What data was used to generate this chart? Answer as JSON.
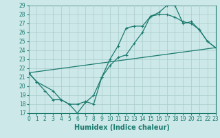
{
  "title": "",
  "xlabel": "Humidex (Indice chaleur)",
  "bg_color": "#cce8e8",
  "grid_color": "#aacccc",
  "line_color": "#1a7a6e",
  "xlim": [
    0,
    23
  ],
  "ylim": [
    17,
    29
  ],
  "xticks": [
    0,
    1,
    2,
    3,
    4,
    5,
    6,
    7,
    8,
    9,
    10,
    11,
    12,
    13,
    14,
    15,
    16,
    17,
    18,
    19,
    20,
    21,
    22,
    23
  ],
  "yticks": [
    17,
    18,
    19,
    20,
    21,
    22,
    23,
    24,
    25,
    26,
    27,
    28,
    29
  ],
  "line1_x": [
    0,
    1,
    2,
    3,
    4,
    5,
    6,
    7,
    8,
    9,
    10,
    11,
    12,
    13,
    14,
    15,
    16,
    17,
    18,
    19,
    20,
    21,
    22,
    23
  ],
  "line1_y": [
    21.5,
    20.5,
    19.5,
    18.5,
    18.5,
    18.0,
    17.0,
    18.2,
    19.0,
    21.0,
    23.0,
    24.5,
    26.5,
    26.7,
    26.7,
    27.8,
    28.2,
    29.0,
    29.0,
    27.0,
    27.2,
    26.3,
    25.0,
    24.3
  ],
  "line2_x": [
    0,
    1,
    3,
    4,
    5,
    6,
    7,
    8,
    9,
    10,
    11,
    12,
    13,
    14,
    15,
    16,
    17,
    18,
    19,
    20,
    21,
    22,
    23
  ],
  "line2_y": [
    21.5,
    20.5,
    19.5,
    18.5,
    18.0,
    18.0,
    18.3,
    18.0,
    21.0,
    22.3,
    23.2,
    23.5,
    24.8,
    26.0,
    27.8,
    28.0,
    28.0,
    27.7,
    27.2,
    27.0,
    26.3,
    25.0,
    24.3
  ],
  "line3_x": [
    0,
    23
  ],
  "line3_y": [
    21.5,
    24.3
  ],
  "tick_fontsize": 5.5,
  "xlabel_fontsize": 7,
  "marker_size": 3,
  "linewidth": 0.9
}
